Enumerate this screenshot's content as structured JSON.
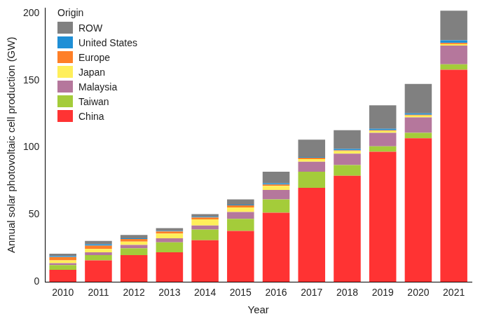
{
  "chart_data": {
    "type": "bar",
    "stacked": true,
    "x_label": "Year",
    "y_label": "Annual solar photovoltaic cell production (GW)",
    "legend_title": "Origin",
    "legend": "upper left",
    "grid": false,
    "categories": [
      "2010",
      "2011",
      "2012",
      "2013",
      "2014",
      "2015",
      "2016",
      "2017",
      "2018",
      "2019",
      "2020",
      "2021"
    ],
    "ylim": [
      0,
      204
    ],
    "yticks": [
      0,
      50,
      100,
      150,
      200
    ],
    "series": [
      {
        "name": "China",
        "color": "#ff3333",
        "values": [
          9,
          16,
          20,
          22,
          31,
          38,
          51.5,
          70,
          79,
          97,
          107,
          158
        ]
      },
      {
        "name": "Taiwan",
        "color": "#a4cc3a",
        "values": [
          3.5,
          4,
          5,
          7.5,
          8,
          9,
          10,
          12,
          8,
          4,
          4,
          4
        ]
      },
      {
        "name": "Malaysia",
        "color": "#b5779c",
        "values": [
          1.5,
          2,
          2.5,
          3,
          3,
          5,
          7,
          7.5,
          8.5,
          10,
          11.5,
          14
        ]
      },
      {
        "name": "Japan",
        "color": "#ffef5a",
        "values": [
          2,
          2.5,
          2.5,
          3.5,
          4.5,
          3.5,
          3,
          2,
          2,
          1.5,
          1.5,
          1
        ]
      },
      {
        "name": "Europe",
        "color": "#ff7f27",
        "values": [
          2.5,
          2.5,
          2,
          1.5,
          1.5,
          1.5,
          1,
          1,
          0.5,
          0.5,
          0.5,
          1
        ]
      },
      {
        "name": "United States",
        "color": "#1f8fd6",
        "values": [
          0.8,
          1,
          0.5,
          0.5,
          0.5,
          0.5,
          1,
          0.5,
          1,
          1,
          1,
          2
        ]
      },
      {
        "name": "ROW",
        "color": "#808080",
        "values": [
          1.7,
          2.5,
          2.5,
          2,
          2,
          4,
          8.5,
          13,
          14,
          17.5,
          22,
          22
        ]
      }
    ]
  }
}
